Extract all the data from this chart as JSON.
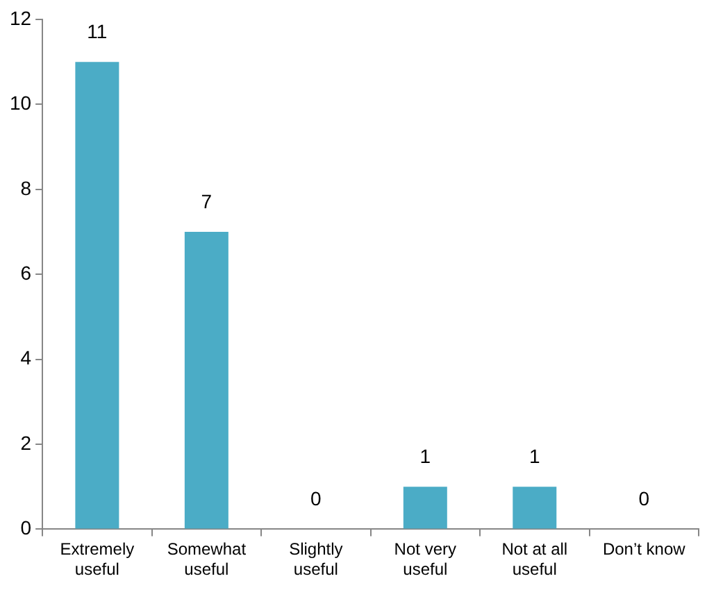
{
  "chart_data": {
    "type": "bar",
    "categories": [
      "Extremely useful",
      "Somewhat useful",
      "Slightly useful",
      "Not very useful",
      "Not at all useful",
      "Don’t know"
    ],
    "values": [
      11,
      7,
      0,
      1,
      1,
      0
    ],
    "color": "#4bacc6",
    "ylim": [
      0,
      12
    ],
    "yticks": [
      0,
      2,
      4,
      6,
      8,
      10,
      12
    ],
    "grid": false,
    "legend": false,
    "data_labels": true
  }
}
